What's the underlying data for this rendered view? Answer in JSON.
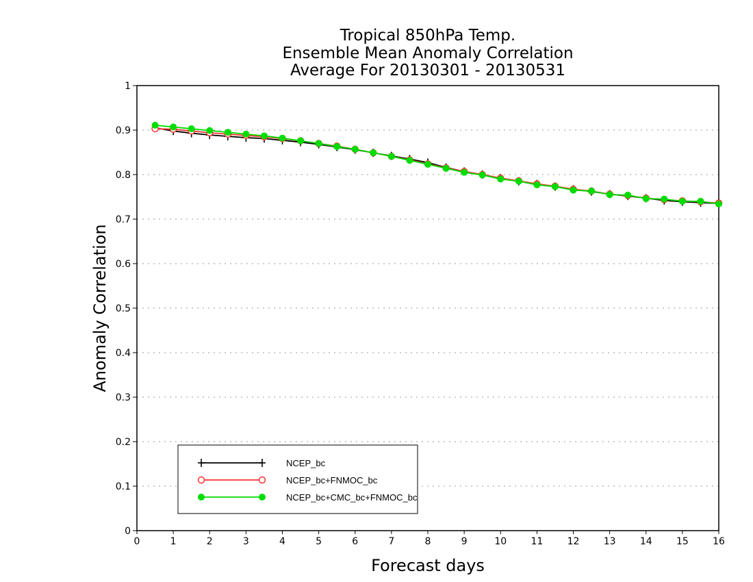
{
  "chart_data": {
    "type": "line",
    "title": [
      "Tropical 850hPa Temp.",
      "Ensemble Mean Anomaly Correlation",
      "Average For 20130301 - 20130531"
    ],
    "xlabel": "Forecast days",
    "ylabel": "Anomaly Correlation",
    "xlim": [
      0,
      16
    ],
    "ylim": [
      0,
      1
    ],
    "xticks": [
      0,
      1,
      2,
      3,
      4,
      5,
      6,
      7,
      8,
      9,
      10,
      11,
      12,
      13,
      14,
      15,
      16
    ],
    "yticks": [
      0,
      0.1,
      0.2,
      0.3,
      0.4,
      0.5,
      0.6,
      0.7,
      0.8,
      0.9,
      1
    ],
    "ytick_labels": [
      "0",
      "0.1",
      "0.2",
      "0.3",
      "0.4",
      "0.5",
      "0.6",
      "0.7",
      "0.8",
      "0.9",
      "1"
    ],
    "grid": "horizontal-dotted",
    "legend_position": "bottom-left",
    "x": [
      0.5,
      1,
      1.5,
      2,
      2.5,
      3,
      3.5,
      4,
      4.5,
      5,
      5.5,
      6,
      6.5,
      7,
      7.5,
      8,
      8.5,
      9,
      9.5,
      10,
      10.5,
      11,
      11.5,
      12,
      12.5,
      13,
      13.5,
      14,
      14.5,
      15,
      15.5,
      16
    ],
    "series": [
      {
        "name": "NCEP_bc",
        "color": "#000000",
        "marker": "plus",
        "values": [
          0.905,
          0.898,
          0.893,
          0.889,
          0.886,
          0.883,
          0.881,
          0.877,
          0.873,
          0.868,
          0.862,
          0.856,
          0.849,
          0.842,
          0.835,
          0.827,
          0.816,
          0.807,
          0.8,
          0.792,
          0.785,
          0.779,
          0.773,
          0.767,
          0.762,
          0.756,
          0.752,
          0.747,
          0.742,
          0.739,
          0.737,
          0.735
        ]
      },
      {
        "name": "NCEP_bc+FNMOC_bc",
        "color": "#ff3333",
        "marker": "open-circle",
        "values": [
          0.903,
          0.902,
          0.898,
          0.894,
          0.891,
          0.888,
          0.885,
          0.881,
          0.876,
          0.87,
          0.864,
          0.857,
          0.849,
          0.841,
          0.833,
          0.824,
          0.815,
          0.807,
          0.8,
          0.792,
          0.786,
          0.779,
          0.774,
          0.767,
          0.763,
          0.756,
          0.753,
          0.747,
          0.744,
          0.741,
          0.739,
          0.736
        ]
      },
      {
        "name": "NCEP_bc+CMC_bc+FNMOC_bc",
        "color": "#00dd00",
        "marker": "filled-circle",
        "values": [
          0.911,
          0.907,
          0.903,
          0.899,
          0.895,
          0.891,
          0.887,
          0.882,
          0.876,
          0.87,
          0.863,
          0.857,
          0.849,
          0.841,
          0.832,
          0.823,
          0.814,
          0.805,
          0.799,
          0.79,
          0.785,
          0.777,
          0.773,
          0.765,
          0.763,
          0.755,
          0.754,
          0.746,
          0.745,
          0.74,
          0.74,
          0.734
        ]
      }
    ]
  }
}
